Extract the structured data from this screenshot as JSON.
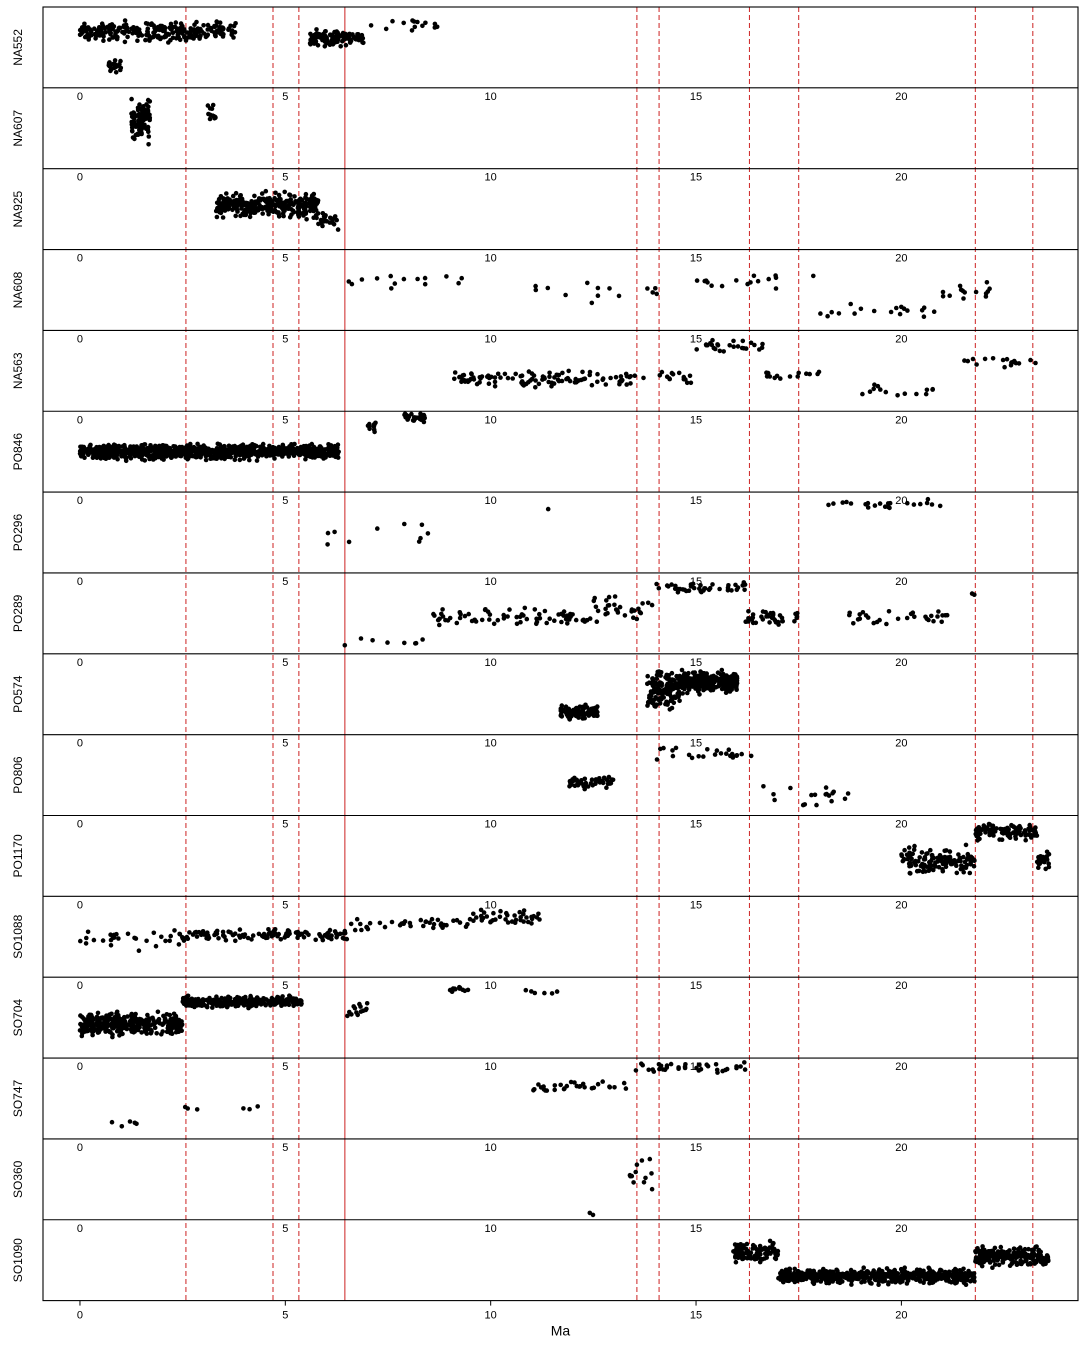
{
  "chart_data": {
    "type": "scatter",
    "layout": "stacked-panels",
    "xlabel": "Ma",
    "xlim": [
      -0.9,
      24.3
    ],
    "xticks": [
      0,
      5,
      10,
      15,
      20
    ],
    "tick_labels": [
      "0",
      "5",
      "10",
      "15",
      "20"
    ],
    "reference_lines": [
      {
        "x": 2.58,
        "style": "dashed",
        "color": "#cc2222"
      },
      {
        "x": 4.7,
        "style": "dashed",
        "color": "#cc2222"
      },
      {
        "x": 5.33,
        "style": "dashed",
        "color": "#cc2222"
      },
      {
        "x": 6.45,
        "style": "solid",
        "color": "#cc2222"
      },
      {
        "x": 13.56,
        "style": "dashed",
        "color": "#cc2222"
      },
      {
        "x": 14.1,
        "style": "dashed",
        "color": "#cc2222"
      },
      {
        "x": 16.3,
        "style": "dashed",
        "color": "#cc2222"
      },
      {
        "x": 17.5,
        "style": "dashed",
        "color": "#cc2222"
      },
      {
        "x": 21.8,
        "style": "dashed",
        "color": "#cc2222"
      },
      {
        "x": 23.2,
        "style": "dashed",
        "color": "#cc2222"
      }
    ],
    "point_color": "#000000",
    "panels": [
      {
        "name": "NA552",
        "segments": [
          {
            "x0": 0.0,
            "x1": 3.8,
            "y": 0.7,
            "noise": 0.14,
            "n": 260
          },
          {
            "x0": 0.7,
            "x1": 1.0,
            "y": 0.28,
            "noise": 0.1,
            "n": 20
          },
          {
            "x0": 5.6,
            "x1": 6.9,
            "y": 0.62,
            "noise": 0.1,
            "n": 120
          },
          {
            "x0": 6.9,
            "x1": 8.8,
            "y": 0.78,
            "noise": 0.1,
            "n": 14
          }
        ]
      },
      {
        "name": "NA607",
        "segments": [
          {
            "x0": 1.25,
            "x1": 1.7,
            "y": 0.6,
            "noise": 0.28,
            "n": 90
          },
          {
            "x0": 3.1,
            "x1": 3.3,
            "y": 0.68,
            "noise": 0.1,
            "n": 12
          }
        ]
      },
      {
        "name": "NA925",
        "segments": [
          {
            "x0": 3.3,
            "x1": 5.8,
            "y": 0.55,
            "noise": 0.16,
            "n": 320
          },
          {
            "x0": 5.8,
            "x1": 6.3,
            "y": 0.35,
            "noise": 0.12,
            "n": 24
          }
        ]
      },
      {
        "name": "NA608",
        "segments": [
          {
            "x0": 6.5,
            "x1": 9.3,
            "y": 0.62,
            "noise": 0.1,
            "n": 14
          },
          {
            "x0": 11.0,
            "x1": 14.5,
            "y": 0.45,
            "noise": 0.14,
            "n": 14
          },
          {
            "x0": 14.5,
            "x1": 18.0,
            "y": 0.6,
            "noise": 0.1,
            "n": 16
          },
          {
            "x0": 18.0,
            "x1": 21.0,
            "y": 0.25,
            "noise": 0.12,
            "n": 18
          },
          {
            "x0": 21.0,
            "x1": 22.2,
            "y": 0.5,
            "noise": 0.15,
            "n": 14
          }
        ]
      },
      {
        "name": "NA563",
        "segments": [
          {
            "x0": 9.0,
            "x1": 13.5,
            "y": 0.4,
            "noise": 0.1,
            "n": 110
          },
          {
            "x0": 13.5,
            "x1": 15.0,
            "y": 0.4,
            "noise": 0.12,
            "n": 16
          },
          {
            "x0": 15.0,
            "x1": 16.7,
            "y": 0.82,
            "noise": 0.1,
            "n": 26
          },
          {
            "x0": 16.7,
            "x1": 18.0,
            "y": 0.45,
            "noise": 0.1,
            "n": 14
          },
          {
            "x0": 19.0,
            "x1": 21.0,
            "y": 0.25,
            "noise": 0.1,
            "n": 14
          },
          {
            "x0": 21.5,
            "x1": 23.5,
            "y": 0.6,
            "noise": 0.1,
            "n": 18
          }
        ]
      },
      {
        "name": "PO846",
        "segments": [
          {
            "x0": 0.0,
            "x1": 6.3,
            "y": 0.5,
            "noise": 0.1,
            "n": 900
          },
          {
            "x0": 7.0,
            "x1": 7.2,
            "y": 0.82,
            "noise": 0.07,
            "n": 10
          },
          {
            "x0": 7.9,
            "x1": 8.4,
            "y": 0.92,
            "noise": 0.06,
            "n": 30
          }
        ]
      },
      {
        "name": "PO296",
        "segments": [
          {
            "x0": 6.0,
            "x1": 8.5,
            "y": 0.5,
            "noise": 0.22,
            "n": 10
          },
          {
            "x0": 11.3,
            "x1": 11.5,
            "y": 0.78,
            "noise": 0.02,
            "n": 1
          },
          {
            "x0": 18.2,
            "x1": 21.0,
            "y": 0.85,
            "noise": 0.06,
            "n": 22
          }
        ]
      },
      {
        "name": "PO289",
        "segments": [
          {
            "x0": 6.2,
            "x1": 8.5,
            "y": 0.15,
            "noise": 0.1,
            "n": 8
          },
          {
            "x0": 8.5,
            "x1": 12.5,
            "y": 0.45,
            "noise": 0.12,
            "n": 70
          },
          {
            "x0": 12.5,
            "x1": 14.0,
            "y": 0.55,
            "noise": 0.18,
            "n": 30
          },
          {
            "x0": 14.0,
            "x1": 16.2,
            "y": 0.82,
            "noise": 0.08,
            "n": 40
          },
          {
            "x0": 16.2,
            "x1": 17.5,
            "y": 0.45,
            "noise": 0.14,
            "n": 40
          },
          {
            "x0": 18.5,
            "x1": 21.5,
            "y": 0.45,
            "noise": 0.12,
            "n": 30
          },
          {
            "x0": 21.5,
            "x1": 22.0,
            "y": 0.75,
            "noise": 0.04,
            "n": 2
          }
        ]
      },
      {
        "name": "PO574",
        "segments": [
          {
            "x0": 11.7,
            "x1": 12.6,
            "y": 0.28,
            "noise": 0.09,
            "n": 110
          },
          {
            "x0": 13.8,
            "x1": 14.6,
            "y": 0.55,
            "noise": 0.25,
            "n": 140
          },
          {
            "x0": 14.6,
            "x1": 16.0,
            "y": 0.65,
            "noise": 0.14,
            "n": 300
          }
        ]
      },
      {
        "name": "PO806",
        "segments": [
          {
            "x0": 11.9,
            "x1": 13.0,
            "y": 0.4,
            "noise": 0.08,
            "n": 50
          },
          {
            "x0": 13.8,
            "x1": 16.5,
            "y": 0.75,
            "noise": 0.12,
            "n": 26
          },
          {
            "x0": 16.5,
            "x1": 18.8,
            "y": 0.25,
            "noise": 0.12,
            "n": 18
          }
        ]
      },
      {
        "name": "PO1170",
        "segments": [
          {
            "x0": 20.0,
            "x1": 21.8,
            "y": 0.45,
            "noise": 0.18,
            "n": 130
          },
          {
            "x0": 21.8,
            "x1": 23.3,
            "y": 0.8,
            "noise": 0.12,
            "n": 110
          },
          {
            "x0": 23.3,
            "x1": 23.6,
            "y": 0.45,
            "noise": 0.1,
            "n": 30
          }
        ]
      },
      {
        "name": "SO1088",
        "segments": [
          {
            "x0": 0.0,
            "x1": 2.5,
            "y": 0.45,
            "noise": 0.15,
            "n": 30
          },
          {
            "x0": 2.5,
            "x1": 6.5,
            "y": 0.52,
            "noise": 0.08,
            "n": 110
          },
          {
            "x0": 6.5,
            "x1": 9.5,
            "y": 0.65,
            "noise": 0.08,
            "n": 40
          },
          {
            "x0": 9.5,
            "x1": 11.2,
            "y": 0.75,
            "noise": 0.1,
            "n": 40
          }
        ]
      },
      {
        "name": "SO704",
        "segments": [
          {
            "x0": 0.0,
            "x1": 2.5,
            "y": 0.42,
            "noise": 0.16,
            "n": 320
          },
          {
            "x0": 2.5,
            "x1": 5.4,
            "y": 0.7,
            "noise": 0.08,
            "n": 260
          },
          {
            "x0": 6.5,
            "x1": 7.0,
            "y": 0.6,
            "noise": 0.15,
            "n": 14
          },
          {
            "x0": 9.0,
            "x1": 9.5,
            "y": 0.85,
            "noise": 0.04,
            "n": 14
          },
          {
            "x0": 10.8,
            "x1": 12.0,
            "y": 0.82,
            "noise": 0.04,
            "n": 6
          }
        ]
      },
      {
        "name": "SO747",
        "segments": [
          {
            "x0": 0.5,
            "x1": 1.5,
            "y": 0.18,
            "noise": 0.06,
            "n": 5
          },
          {
            "x0": 2.5,
            "x1": 5.5,
            "y": 0.38,
            "noise": 0.03,
            "n": 6
          },
          {
            "x0": 11.0,
            "x1": 13.5,
            "y": 0.65,
            "noise": 0.08,
            "n": 30
          },
          {
            "x0": 13.5,
            "x1": 16.2,
            "y": 0.88,
            "noise": 0.08,
            "n": 36
          }
        ]
      },
      {
        "name": "SO360",
        "segments": [
          {
            "x0": 12.4,
            "x1": 12.5,
            "y": 0.08,
            "noise": 0.03,
            "n": 2
          },
          {
            "x0": 13.3,
            "x1": 14.0,
            "y": 0.6,
            "noise": 0.25,
            "n": 12
          }
        ]
      },
      {
        "name": "SO1090",
        "segments": [
          {
            "x0": 15.9,
            "x1": 17.0,
            "y": 0.6,
            "noise": 0.13,
            "n": 100
          },
          {
            "x0": 17.0,
            "x1": 21.8,
            "y": 0.3,
            "noise": 0.1,
            "n": 600
          },
          {
            "x0": 21.8,
            "x1": 23.6,
            "y": 0.55,
            "noise": 0.13,
            "n": 220
          }
        ]
      }
    ]
  }
}
